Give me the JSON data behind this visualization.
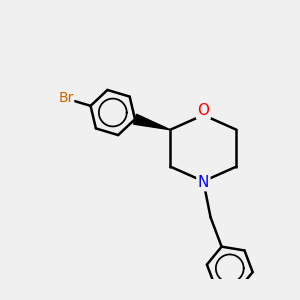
{
  "bg_color": "#f0f0f0",
  "bond_color": "#000000",
  "O_color": "#ff0000",
  "N_color": "#0000ff",
  "Br_color": "#cc6600",
  "line_width": 1.8,
  "figsize": [
    3.0,
    3.0
  ],
  "dpi": 100,
  "xlim": [
    -4.0,
    4.0
  ],
  "ylim": [
    -3.5,
    3.5
  ]
}
